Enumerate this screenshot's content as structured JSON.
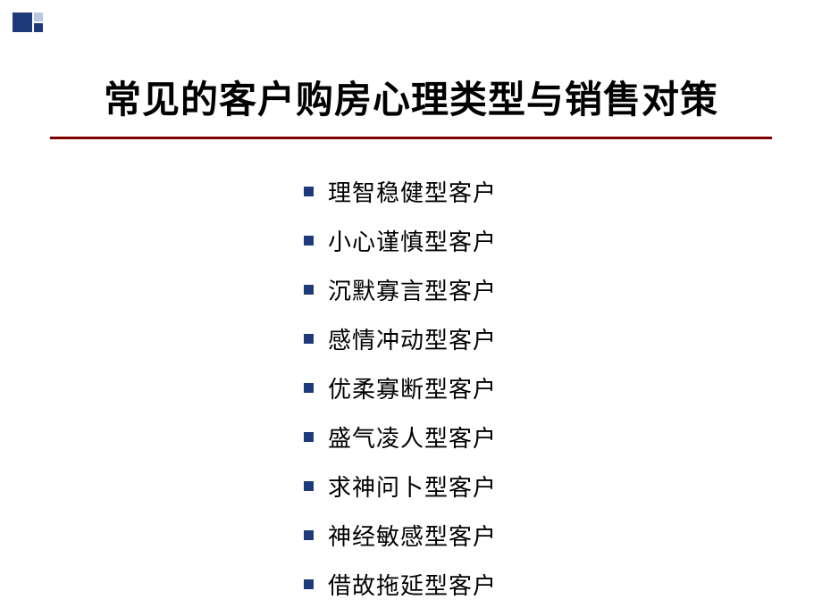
{
  "slide": {
    "title": "常见的客户购房心理类型与销售对策",
    "items": [
      "理智稳健型客户",
      "小心谨慎型客户",
      "沉默寡言型客户",
      "感情冲动型客户",
      "优柔寡断型客户",
      "盛气凌人型客户",
      "求神问卜型客户",
      "神经敏感型客户",
      "借故拖延型客户"
    ]
  },
  "style": {
    "accent_dark": "#1f3a7a",
    "accent_light": "#b9c6e4",
    "rule_color": "#800000",
    "bullet_color": "#1f3a7a",
    "title_color": "#000000",
    "text_color": "#000000",
    "background": "#ffffff",
    "title_fontsize": 42,
    "item_fontsize": 26,
    "item_gap": 18
  }
}
